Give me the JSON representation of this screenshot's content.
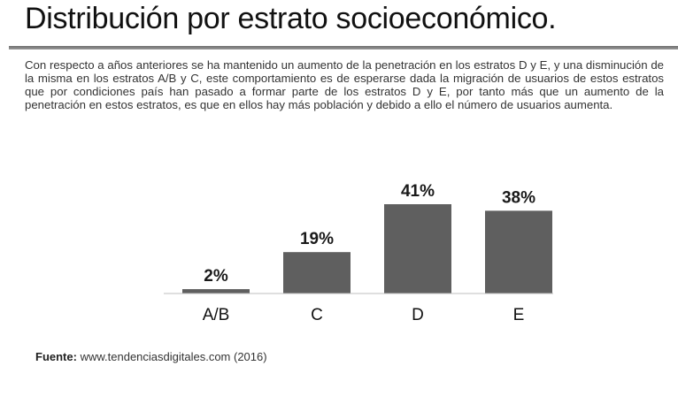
{
  "header": {
    "title": "Distribución por estrato socioeconómico."
  },
  "body": {
    "paragraph": "Con respecto a años anteriores se ha mantenido un aumento de la penetración en los estratos D y E, y una disminución de la misma en los estratos A/B y C, este comportamiento es de esperarse dada la migración de usuarios de estos estratos que por condiciones país han pasado a formar parte de los estratos D y E, por tanto más que un aumento de la penetración en estos estratos, es que en ellos hay más población y debido a ello el número de usuarios aumenta."
  },
  "chart_data": {
    "type": "bar",
    "categories": [
      "A/B",
      "C",
      "D",
      "E"
    ],
    "values": [
      2,
      19,
      41,
      38
    ],
    "data_labels": [
      "2%",
      "19%",
      "41%",
      "38%"
    ],
    "unit": "%",
    "title": "",
    "xlabel": "",
    "ylabel": "",
    "ylim": [
      0,
      45
    ],
    "grid": false,
    "legend": "none",
    "bar_color": "#5f5f5f",
    "axis_color": "#bfbfbf"
  },
  "source": {
    "label": "Fuente:",
    "text": "www.tendenciasdigitales.com (2016)"
  }
}
